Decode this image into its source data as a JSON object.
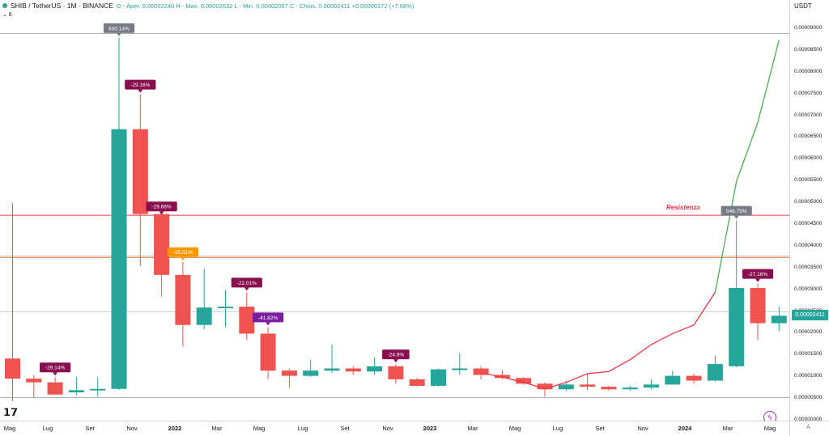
{
  "header": {
    "symbol": "SHIB / TetherUS · 1M · BINANCE",
    "ohlc": "O ‑ Aper. 0.00002240  H ‑ Max. 0.00002632  L ‑ Min. 0.00002057  C ‑ Chius. 0.00002411  +0.00000172 (+7.68%)",
    "indicator_toggle": "⌄ 6"
  },
  "price_axis": {
    "currency": "USDT",
    "last_price": "0.00002411",
    "ticks": [
      "0.00009000",
      "0.00008500",
      "0.00008000",
      "0.00007500",
      "0.00007000",
      "0.00006500",
      "0.00006000",
      "0.00005500",
      "0.00005000",
      "0.00004500",
      "0.00004000",
      "0.00003500",
      "0.00003000",
      "0.00002500",
      "0.00002000",
      "0.00001500",
      "0.00001000",
      "0.00000500",
      "0.00000000"
    ]
  },
  "time_axis": {
    "labels": [
      "Mag",
      "Lug",
      "Set",
      "Nov",
      "2022",
      "Mar",
      "Mag",
      "Lug",
      "Set",
      "Nov",
      "2023",
      "Mar",
      "Mag",
      "Lug",
      "Set",
      "Nov",
      "2024",
      "Mar",
      "Mag"
    ],
    "auto_label": "A"
  },
  "annotations": {
    "resistance": "Resistenza"
  },
  "icons": {
    "logo": "tradingview-logo-icon",
    "flash": "lightning-icon"
  },
  "colors": {
    "up": "#26a69a",
    "down": "#ef5350",
    "resistance": "#f23645",
    "support": "#ef8a3c",
    "green_line": "#4caf50",
    "red_line": "#f23645"
  },
  "chart_data": {
    "type": "candlestick",
    "candles": [
      {
        "label": "Apr 2021",
        "open": 1.428e-05,
        "high": 5e-05,
        "low": 4.5e-06,
        "close": 9.65e-06
      },
      {
        "label": "Jun 2021",
        "open": 9.65e-06,
        "high": 1.05e-05,
        "low": 5.2e-06,
        "close": 8.8e-06
      },
      {
        "label": "Jul 2021",
        "open": 8.8e-06,
        "high": 1e-05,
        "low": 6e-06,
        "close": 6e-06
      },
      {
        "label": "Aug 2021",
        "open": 6.5e-06,
        "high": 1e-05,
        "low": 5.8e-06,
        "close": 7e-06
      },
      {
        "label": "Sep 2021",
        "open": 7e-06,
        "high": 1e-05,
        "low": 5.5e-06,
        "close": 7.3e-06
      },
      {
        "label": "Oct 2021",
        "open": 7.3e-06,
        "high": 8.8e-05,
        "low": 7e-06,
        "close": 6.7e-05
      },
      {
        "label": "Nov 2021",
        "open": 6.7e-05,
        "high": 7.5e-05,
        "low": 3.55e-05,
        "close": 4.75e-05
      },
      {
        "label": "Dec 2021",
        "open": 4.75e-05,
        "high": 4.7e-05,
        "low": 2.85e-05,
        "close": 3.35e-05
      },
      {
        "label": "Jan 2022",
        "open": 3.35e-05,
        "high": 3.65e-05,
        "low": 1.7e-05,
        "close": 2.2e-05
      },
      {
        "label": "Feb 2022",
        "open": 2.2e-05,
        "high": 3.5e-05,
        "low": 2.1e-05,
        "close": 2.6e-05
      },
      {
        "label": "Mar 2022",
        "open": 2.6e-05,
        "high": 3e-05,
        "low": 2.15e-05,
        "close": 2.62e-05
      },
      {
        "label": "Apr 2022",
        "open": 2.62e-05,
        "high": 2.95e-05,
        "low": 1.85e-05,
        "close": 2e-05
      },
      {
        "label": "May 2022",
        "open": 2e-05,
        "high": 2.15e-05,
        "low": 9.5e-06,
        "close": 1.15e-05
      },
      {
        "label": "Jun 2022",
        "open": 1.15e-05,
        "high": 1.2e-05,
        "low": 7.5e-06,
        "close": 1.03e-05
      },
      {
        "label": "Jul 2022",
        "open": 1.03e-05,
        "high": 1.4e-05,
        "low": 1e-05,
        "close": 1.15e-05
      },
      {
        "label": "Aug 2022",
        "open": 1.15e-05,
        "high": 1.75e-05,
        "low": 1.1e-05,
        "close": 1.2e-05
      },
      {
        "label": "Sep 2022",
        "open": 1.2e-05,
        "high": 1.25e-05,
        "low": 1.05e-05,
        "close": 1.13e-05
      },
      {
        "label": "Oct 2022",
        "open": 1.13e-05,
        "high": 1.45e-05,
        "low": 1.05e-05,
        "close": 1.25e-05
      },
      {
        "label": "Nov 2022",
        "open": 1.25e-05,
        "high": 1.3e-05,
        "low": 8.5e-06,
        "close": 9.5e-06
      },
      {
        "label": "Dec 2022",
        "open": 9.5e-06,
        "high": 9.8e-06,
        "low": 7.8e-06,
        "close": 8e-06
      },
      {
        "label": "Jan 2023",
        "open": 8e-06,
        "high": 1.2e-05,
        "low": 7.8e-06,
        "close": 1.18e-05
      },
      {
        "label": "Feb 2023",
        "open": 1.18e-05,
        "high": 1.55e-05,
        "low": 1.05e-05,
        "close": 1.2e-05
      },
      {
        "label": "Mar 2023",
        "open": 1.2e-05,
        "high": 1.25e-05,
        "low": 9.5e-06,
        "close": 1.05e-05
      },
      {
        "label": "Apr 2023",
        "open": 1.05e-05,
        "high": 1.15e-05,
        "low": 9.5e-06,
        "close": 9.8e-06
      },
      {
        "label": "May 2023",
        "open": 9.8e-06,
        "high": 1e-05,
        "low": 8.2e-06,
        "close": 8.5e-06
      },
      {
        "label": "Jun 2023",
        "open": 8.5e-06,
        "high": 8.8e-06,
        "low": 5.5e-06,
        "close": 7.2e-06
      },
      {
        "label": "Jul 2023",
        "open": 7.2e-06,
        "high": 9.2e-06,
        "low": 6.8e-06,
        "close": 8.3e-06
      },
      {
        "label": "Aug 2023",
        "open": 8.3e-06,
        "high": 1.08e-05,
        "low": 7e-06,
        "close": 7.8e-06
      },
      {
        "label": "Sep 2023",
        "open": 7.8e-06,
        "high": 8e-06,
        "low": 6.8e-06,
        "close": 7.2e-06
      },
      {
        "label": "Oct 2023",
        "open": 7.2e-06,
        "high": 8e-06,
        "low": 6.8e-06,
        "close": 7.6e-06
      },
      {
        "label": "Nov 2023",
        "open": 7.6e-06,
        "high": 9.5e-06,
        "low": 7.2e-06,
        "close": 8.3e-06
      },
      {
        "label": "Dec 2023",
        "open": 8.3e-06,
        "high": 1.15e-05,
        "low": 8.2e-06,
        "close": 1.03e-05
      },
      {
        "label": "Jan 2024",
        "open": 1.03e-05,
        "high": 1.08e-05,
        "low": 8.5e-06,
        "close": 9.2e-06
      },
      {
        "label": "Feb 2024",
        "open": 9.2e-06,
        "high": 1.5e-05,
        "low": 9e-06,
        "close": 1.3e-05
      },
      {
        "label": "Mar 2024",
        "open": 1.25e-05,
        "high": 4.6e-05,
        "low": 1.23e-05,
        "close": 3.05e-05
      },
      {
        "label": "Apr 2024",
        "open": 3.05e-05,
        "high": 3.15e-05,
        "low": 1.85e-05,
        "close": 2.24e-05
      },
      {
        "label": "May 2024",
        "open": 2.24e-05,
        "high": 2.632e-05,
        "low": 2.057e-05,
        "close": 2.411e-05
      }
    ],
    "callouts": [
      {
        "text": "830.14%",
        "candle": 5,
        "at": "high",
        "color": "#787b86"
      },
      {
        "text": "-29.14%",
        "candle": 2,
        "at": "high",
        "color": "#880e4f"
      },
      {
        "text": "-29.16%",
        "candle": 6,
        "at": "high",
        "color": "#880e4f"
      },
      {
        "text": "-29.66%",
        "candle": 7,
        "at": "high",
        "color": "#880e4f"
      },
      {
        "text": "-35.81%",
        "candle": 8,
        "at": "high",
        "color": "#ff9800"
      },
      {
        "text": "-22.01%",
        "candle": 11,
        "at": "high",
        "color": "#880e4f"
      },
      {
        "text": "-41.82%",
        "candle": 12,
        "at": "high",
        "color": "#7b1fa2"
      },
      {
        "text": "-24.9%",
        "candle": 18,
        "at": "high",
        "color": "#880e4f"
      },
      {
        "text": "546.75%",
        "candle": 34,
        "at": "high",
        "color": "#787b86"
      },
      {
        "text": "-27.16%",
        "candle": 35,
        "at": "high",
        "color": "#880e4f"
      }
    ],
    "hlines": [
      {
        "price": 8.9e-05,
        "color": "#9ba7a3"
      },
      {
        "price": 4.72e-05,
        "color": "#f23645",
        "label": "Resistenza"
      },
      {
        "price": 3.75e-05,
        "color": "#ef8a3c"
      },
      {
        "price": 3.78e-05,
        "color": "#b2b5be"
      },
      {
        "price": 2.5e-05,
        "color": "#c8cfd8"
      },
      {
        "price": 5.3e-06,
        "color": "#b2b5be"
      }
    ],
    "red_path": [
      {
        "candle": 22,
        "price": 1.1e-05
      },
      {
        "candle": 23,
        "price": 1e-05
      },
      {
        "candle": 24,
        "price": 8.8e-06
      },
      {
        "candle": 25,
        "price": 7.3e-06
      },
      {
        "candle": 26,
        "price": 8.8e-06
      },
      {
        "candle": 27,
        "price": 1.08e-05
      },
      {
        "candle": 28,
        "price": 1.13e-05
      },
      {
        "candle": 29,
        "price": 1.4e-05
      },
      {
        "candle": 30,
        "price": 1.75e-05
      },
      {
        "candle": 31,
        "price": 2e-05
      },
      {
        "candle": 32,
        "price": 2.2e-05
      },
      {
        "candle": 33,
        "price": 2.95e-05
      }
    ],
    "green_path": [
      {
        "candle": 33,
        "price": 2.95e-05
      },
      {
        "candle": 34,
        "price": 5.5e-05
      },
      {
        "candle": 35,
        "price": 6.85e-05
      },
      {
        "candle": 36,
        "price": 8.75e-05
      }
    ],
    "ylim": [
      0,
      9.5e-05
    ]
  }
}
